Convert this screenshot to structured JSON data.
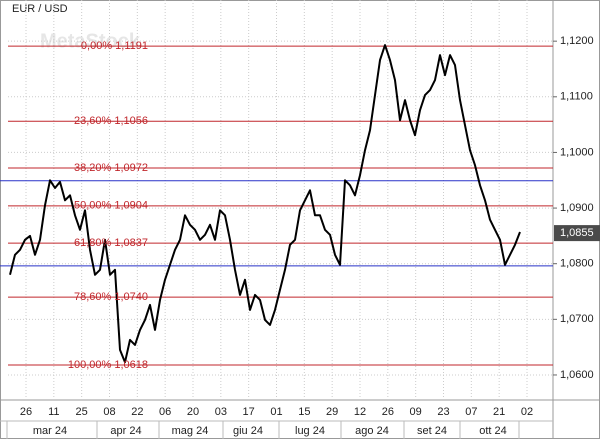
{
  "chart_data": {
    "type": "line",
    "title": "EUR / USD",
    "watermark": "MetaStock",
    "series": [
      {
        "color": "#000000",
        "values": [
          1.078,
          1.0816,
          1.0825,
          1.0843,
          1.085,
          1.0816,
          1.0843,
          1.0905,
          1.095,
          1.0936,
          1.0947,
          1.0914,
          1.0923,
          1.0887,
          1.0861,
          1.0896,
          1.0825,
          1.078,
          1.0789,
          1.0843,
          1.078,
          1.0789,
          1.0645,
          1.0623,
          1.0663,
          1.0654,
          1.0681,
          1.0699,
          1.0726,
          1.0681,
          1.0735,
          1.0771,
          1.0798,
          1.0825,
          1.0843,
          1.0887,
          1.087,
          1.0861,
          1.0843,
          1.0852,
          1.087,
          1.0843,
          1.0896,
          1.0887,
          1.0843,
          1.0789,
          1.0744,
          1.0771,
          1.0717,
          1.0744,
          1.0735,
          1.0699,
          1.069,
          1.0717,
          1.0753,
          1.0789,
          1.0834,
          1.0843,
          1.0896,
          1.0914,
          1.0932,
          1.0887,
          1.0887,
          1.0861,
          1.0852,
          1.0816,
          1.0798,
          1.095,
          1.0941,
          1.0923,
          1.0959,
          1.1004,
          1.104,
          1.1103,
          1.1166,
          1.1193,
          1.1166,
          1.113,
          1.1058,
          1.1094,
          1.1058,
          1.1031,
          1.1076,
          1.1103,
          1.1112,
          1.113,
          1.1175,
          1.1139,
          1.1175,
          1.1157,
          1.1094,
          1.1049,
          1.1004,
          1.0977,
          1.0941,
          1.0914,
          1.0879,
          1.0861,
          1.0843,
          1.0798,
          1.0816,
          1.0834,
          1.0857
        ]
      }
    ],
    "levels": [
      {
        "label": "0,00% 1,1191",
        "value": 1.1191
      },
      {
        "label": "23,60% 1,1056",
        "value": 1.1056
      },
      {
        "label": "38,20% 1,0972",
        "value": 1.0972
      },
      {
        "label": "50,00% 1,0904",
        "value": 1.0904
      },
      {
        "label": "61,80% 1,0837",
        "value": 1.0837
      },
      {
        "label": "78,60% 1,0740",
        "value": 1.074
      },
      {
        "label": "100,00% 1,0618",
        "value": 1.0618
      }
    ],
    "levels_color": "#c0262b",
    "hlines": [
      1.0949,
      1.0796
    ],
    "hlines_color": "#2832c8",
    "last_value": {
      "value": 1.0855,
      "label": "1,0855"
    },
    "ylim": [
      1.0555,
      1.1274
    ],
    "yticks": [
      {
        "value": 1.06,
        "label": "1,0600"
      },
      {
        "value": 1.07,
        "label": "1,0700"
      },
      {
        "value": 1.08,
        "label": "1,0800"
      },
      {
        "value": 1.09,
        "label": "1,0900"
      },
      {
        "value": 1.1,
        "label": "1,1000"
      },
      {
        "value": 1.11,
        "label": "1,1100"
      },
      {
        "value": 1.12,
        "label": "1,1200"
      }
    ],
    "xticks": [
      "26",
      "11",
      "25",
      "08",
      "22",
      "06",
      "20",
      "03",
      "17",
      "01",
      "15",
      "29",
      "12",
      "26",
      "09",
      "23",
      "07",
      "21",
      "02"
    ],
    "months": [
      "mar 24",
      "apr 24",
      "mag 24",
      "giu 24",
      "lug 24",
      "ago 24",
      "set 24",
      "ott 24"
    ],
    "grid": true
  }
}
